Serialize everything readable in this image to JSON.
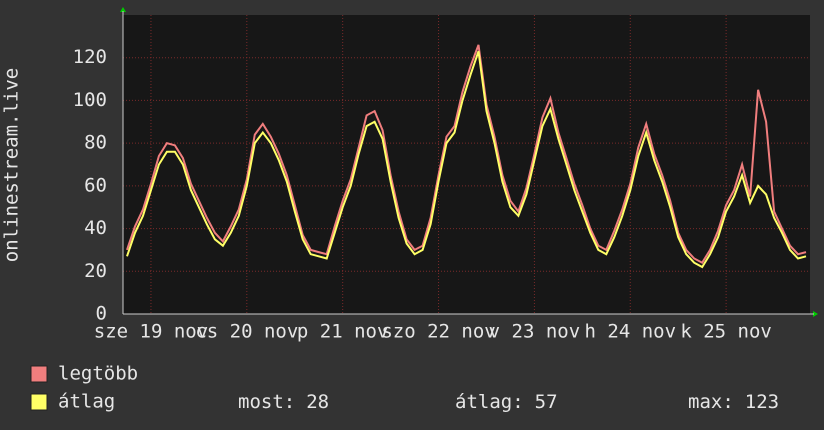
{
  "chart_data": {
    "type": "line",
    "ylabel": "onlinestream.live",
    "categories": [
      null,
      null,
      null,
      "sze 19 nov",
      null,
      null,
      null,
      null,
      null,
      null,
      null,
      null,
      null,
      null,
      null,
      "cs 20 nov",
      null,
      null,
      null,
      null,
      null,
      null,
      null,
      null,
      null,
      null,
      null,
      "p 21 nov",
      null,
      null,
      null,
      null,
      null,
      null,
      null,
      null,
      null,
      null,
      null,
      "szo 22 nov",
      null,
      null,
      null,
      null,
      null,
      null,
      null,
      null,
      null,
      null,
      null,
      "v 23 nov",
      null,
      null,
      null,
      null,
      null,
      null,
      null,
      null,
      null,
      null,
      null,
      "h 24 nov",
      null,
      null,
      null,
      null,
      null,
      null,
      null,
      null,
      null,
      null,
      null,
      "k 25 nov",
      null,
      null,
      null,
      null,
      null,
      null,
      null,
      null,
      null,
      null
    ],
    "series": [
      {
        "name": "legtöbb",
        "color": "#f07e7e",
        "values": [
          30,
          41,
          49,
          61,
          74,
          80,
          79,
          73,
          61,
          53,
          45,
          38,
          34,
          41,
          49,
          63,
          84,
          89,
          83,
          75,
          65,
          51,
          37,
          30,
          29,
          28,
          41,
          53,
          63,
          78,
          93,
          95,
          86,
          65,
          48,
          35,
          30,
          32,
          45,
          65,
          83,
          88,
          104,
          116,
          126,
          98,
          83,
          65,
          53,
          48,
          59,
          75,
          92,
          101,
          85,
          73,
          61,
          51,
          40,
          32,
          30,
          39,
          49,
          61,
          78,
          89,
          75,
          65,
          53,
          38,
          30,
          26,
          24,
          30,
          39,
          51,
          58,
          70,
          55,
          105,
          90,
          48,
          40,
          32,
          28,
          29
        ]
      },
      {
        "name": "átlag",
        "color": "#ffff66",
        "values": [
          27,
          38,
          46,
          58,
          70,
          76,
          76,
          70,
          58,
          50,
          42,
          35,
          32,
          38,
          46,
          60,
          80,
          85,
          80,
          72,
          62,
          48,
          35,
          28,
          27,
          26,
          38,
          50,
          60,
          75,
          88,
          90,
          82,
          62,
          45,
          33,
          28,
          30,
          42,
          62,
          80,
          85,
          100,
          112,
          123,
          95,
          80,
          62,
          50,
          46,
          56,
          72,
          88,
          96,
          82,
          70,
          58,
          48,
          38,
          30,
          28,
          36,
          46,
          58,
          74,
          85,
          72,
          62,
          50,
          36,
          28,
          24,
          22,
          28,
          36,
          48,
          55,
          65,
          52,
          60,
          56,
          45,
          38,
          30,
          26,
          27
        ]
      }
    ],
    "ylim": [
      0,
      140
    ],
    "yticks": [
      0,
      20,
      40,
      60,
      80,
      100,
      120
    ],
    "grid": true,
    "stats": [
      {
        "label": "most:",
        "value": 28
      },
      {
        "label": "átlag:",
        "value": 57
      },
      {
        "label": "max:",
        "value": 123
      }
    ]
  }
}
